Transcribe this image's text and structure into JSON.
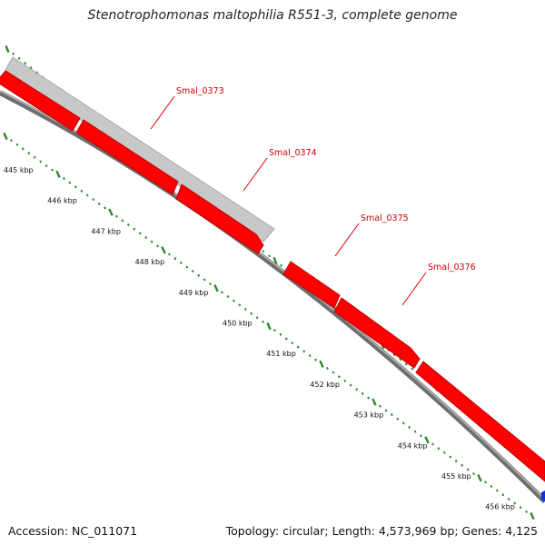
{
  "map": {
    "title": "Stenotrophomonas maltophilia R551-3, complete genome",
    "accession": "Accession: NC_011071",
    "topology": "Topology: circular; Length: 4,573,969 bp; Genes: 4,125"
  },
  "colors": {
    "forward_gene": "#ff0000",
    "forward_gene_dark": "#c00000",
    "reverse_gene": "#c8c8c8",
    "ruler_tick": "#2a8a2a",
    "backbone": "#8a8a8a",
    "label_line": "#dd0000",
    "edge_feature": "#1030e0"
  },
  "ruler": {
    "labels": [
      "445 kbp",
      "446 kbp",
      "447 kbp",
      "448 kbp",
      "449 kbp",
      "450 kbp",
      "451 kbp",
      "452 kbp",
      "453 kbp",
      "454 kbp",
      "455 kbp",
      "456 kbp"
    ]
  },
  "genes": [
    {
      "label": "Smal_0373",
      "strand": "reverse"
    },
    {
      "label": "Smal_0374",
      "strand": "forward"
    },
    {
      "label": "Smal_0375",
      "strand": "forward"
    },
    {
      "label": "Smal_0376",
      "strand": "forward"
    }
  ]
}
